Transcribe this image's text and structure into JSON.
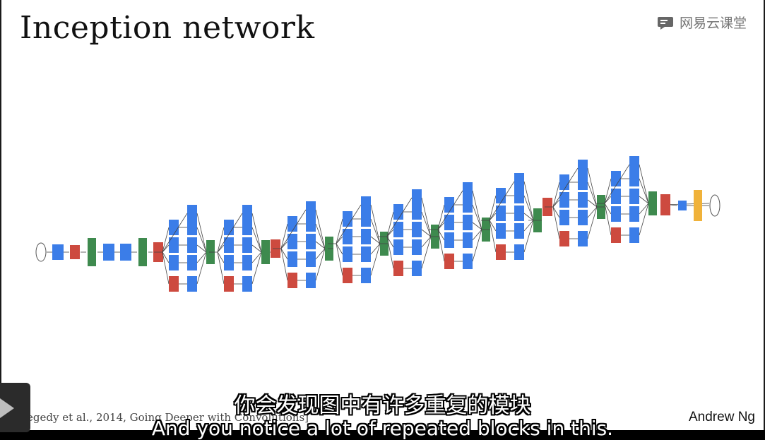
{
  "slide": {
    "title": "Inception network",
    "citation": "[Szegedy et al., 2014, Going Deeper with Convolutions]",
    "author": "Andrew Ng"
  },
  "watermark": {
    "text": "网易云课堂",
    "icon": "cloud-classroom-logo-icon"
  },
  "subtitles": {
    "chinese": "你会发现图中有许多重复的模块",
    "english": "And you notice a lot of repeated blocks in this."
  },
  "player": {
    "play_icon": "play-icon"
  },
  "colors": {
    "conv": "#3b7de8",
    "pool": "#cd4a3f",
    "lrn": "#3e8a4e",
    "softmax": "#f0b23a",
    "arrow": "#444444"
  }
}
